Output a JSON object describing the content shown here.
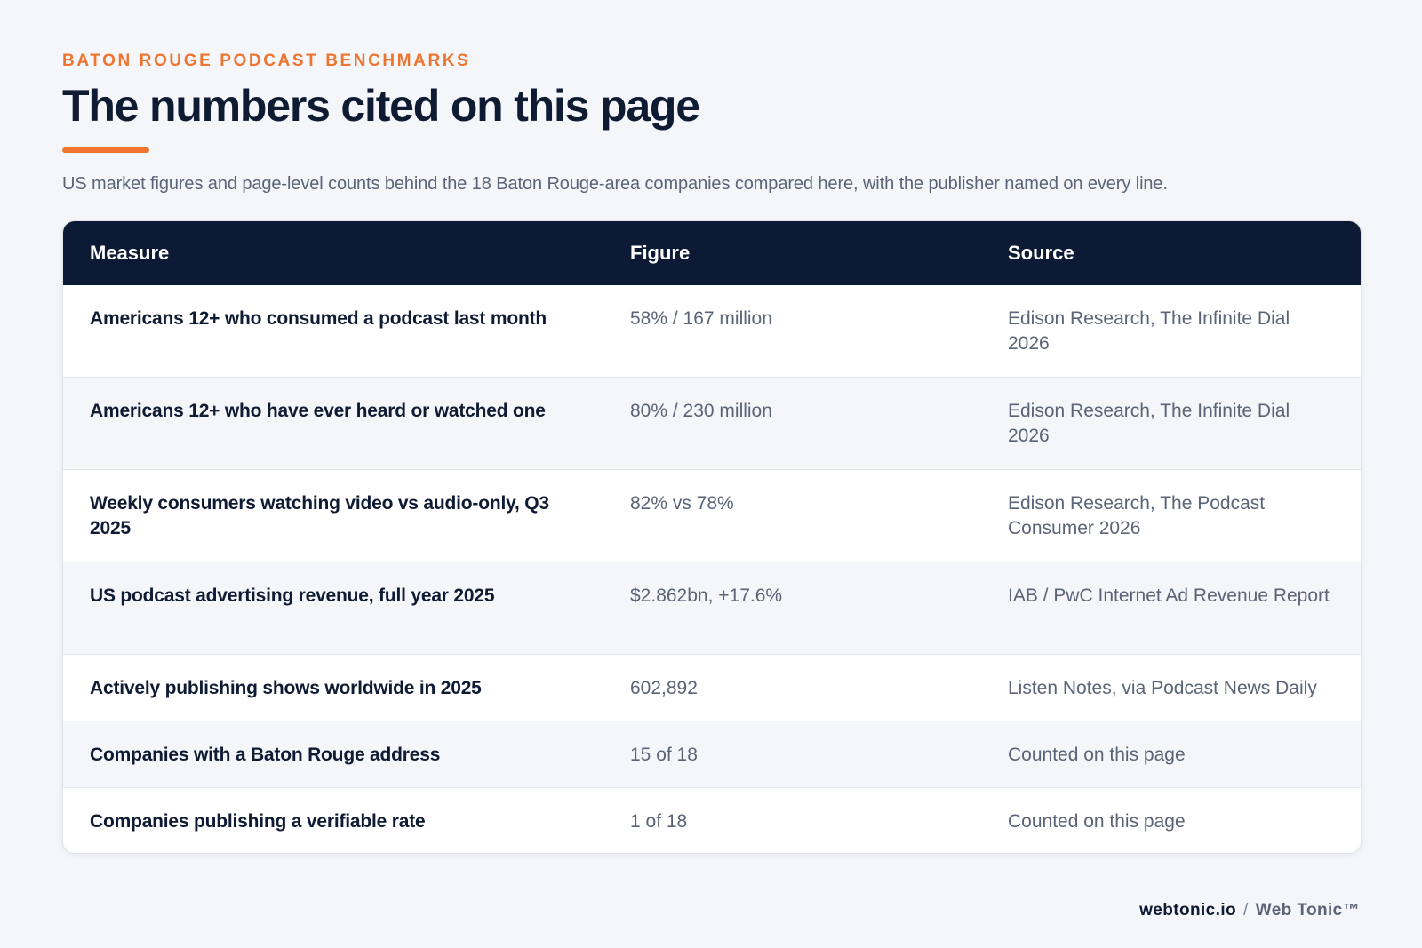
{
  "header": {
    "eyebrow": "BATON ROUGE PODCAST BENCHMARKS",
    "title": "The numbers cited on this page",
    "subtitle": "US market figures and page-level counts behind the 18 Baton Rouge-area companies compared here, with the publisher named on every line."
  },
  "table": {
    "columns": [
      "Measure",
      "Figure",
      "Source"
    ],
    "rows": [
      {
        "measure": "Americans 12+ who consumed a podcast last month",
        "figure": "58% / 167 million",
        "source": "Edison Research, The Infinite Dial 2026"
      },
      {
        "measure": "Americans 12+ who have ever heard or watched one",
        "figure": "80% / 230 million",
        "source": "Edison Research, The Infinite Dial 2026"
      },
      {
        "measure": "Weekly consumers watching video vs audio-only, Q3 2025",
        "figure": "82% vs 78%",
        "source": "Edison Research, The Podcast Consumer 2026"
      },
      {
        "measure": "US podcast advertising revenue, full year 2025",
        "figure": "$2.862bn, +17.6%",
        "source": "IAB / PwC Internet Ad Revenue Report"
      },
      {
        "measure": "Actively publishing shows worldwide in 2025",
        "figure": "602,892",
        "source": "Listen Notes, via Podcast News Daily"
      },
      {
        "measure": "Companies with a Baton Rouge address",
        "figure": "15 of 18",
        "source": "Counted on this page"
      },
      {
        "measure": "Companies publishing a verifiable rate",
        "figure": "1 of 18",
        "source": "Counted on this page"
      }
    ]
  },
  "footer": {
    "domain": "webtonic.io",
    "separator": "/",
    "brand": "Web Tonic™"
  },
  "colors": {
    "accent": "#ee7430",
    "header_bg": "#0d1a35",
    "text_dark": "#0f1b33",
    "text_muted": "#5a6476",
    "page_bg": "#f4f6f9"
  }
}
